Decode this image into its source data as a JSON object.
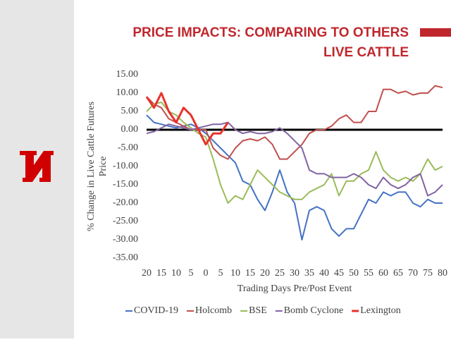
{
  "chart_data": {
    "type": "line",
    "title": [
      "PRICE IMPACTS: COMPARING TO OTHERS",
      "LIVE CATTLE"
    ],
    "ylabel": [
      "% Change in Live Cattle Futures",
      "Price"
    ],
    "xlabel": "Trading Days Pre/Post Event",
    "x": [
      -20,
      -17.5,
      -15,
      -12.5,
      -10,
      -7.5,
      -5,
      -2.5,
      0,
      2.5,
      5,
      7.5,
      10,
      12.5,
      15,
      17.5,
      20,
      22.5,
      25,
      27.5,
      30,
      32.5,
      35,
      37.5,
      40,
      42.5,
      45,
      47.5,
      50,
      52.5,
      55,
      57.5,
      60,
      62.5,
      65,
      67.5,
      70,
      72.5,
      75,
      77.5,
      80
    ],
    "xlim": [
      -20,
      80
    ],
    "xticks": [
      {
        "value": -20,
        "label": "20"
      },
      {
        "value": -15,
        "label": "15"
      },
      {
        "value": -10,
        "label": "10"
      },
      {
        "value": -5,
        "label": "5"
      },
      0,
      5,
      10,
      15,
      20,
      25,
      30,
      35,
      40,
      45,
      50,
      55,
      60,
      65,
      70,
      75,
      80
    ],
    "ylim": [
      -35,
      15
    ],
    "yticks": [
      {
        "value": -35,
        "label": "-35.00"
      },
      {
        "value": -30,
        "label": "-30.00"
      },
      {
        "value": -25,
        "label": "-25.00"
      },
      {
        "value": -20,
        "label": "-20.00"
      },
      {
        "value": -15,
        "label": "-15.00"
      },
      {
        "value": -10,
        "label": "-10.00"
      },
      {
        "value": -5,
        "label": "-5.00"
      },
      {
        "value": 0,
        "label": "0.00"
      },
      {
        "value": 5,
        "label": "5.00"
      },
      {
        "value": 10,
        "label": "10.00"
      },
      {
        "value": 15,
        "label": "15.00"
      }
    ],
    "series": [
      {
        "name": "COVID-19",
        "color": "#4472c4",
        "values": [
          4,
          2,
          1.5,
          1,
          0.5,
          1,
          1.5,
          0.5,
          -1,
          -3,
          -5,
          -7,
          -9,
          -14,
          -15,
          -19,
          -22,
          -17,
          -11,
          -17,
          -20,
          -30,
          -22,
          -21,
          -22,
          -27,
          -29,
          -27,
          -27,
          -23,
          -19,
          -20,
          -17,
          -18,
          -17,
          -17,
          -20,
          -21,
          -19,
          -20,
          -20
        ]
      },
      {
        "name": "Holcomb",
        "color": "#c0504d",
        "values": [
          9,
          7,
          6,
          3,
          2,
          1,
          0,
          0,
          0,
          -5,
          -7,
          -8,
          -5,
          -3,
          -2.5,
          -3,
          -2,
          -4,
          -8,
          -8,
          -6,
          -4,
          -1,
          0,
          0,
          1,
          3,
          4,
          2,
          2,
          5,
          5,
          11,
          11,
          10,
          10.5,
          9.5,
          10,
          10,
          12,
          11.5
        ]
      },
      {
        "name": "BSE",
        "color": "#9bbb59",
        "values": [
          5,
          7,
          7.5,
          5,
          4,
          2,
          0.5,
          -1,
          -2,
          -8,
          -15,
          -20,
          -18,
          -19,
          -15,
          -11,
          -13,
          -15,
          -17,
          -18,
          -19,
          -19,
          -17,
          -16,
          -15,
          -12,
          -18,
          -14,
          -14,
          -12,
          -11,
          -6,
          -11,
          -13,
          -14,
          -13,
          -14,
          -12,
          -8,
          -11,
          -10
        ]
      },
      {
        "name": "Bomb Cyclone",
        "color": "#8064a2",
        "values": [
          -1,
          -0.5,
          0.5,
          1.5,
          1,
          0.5,
          0,
          0.5,
          1,
          1.5,
          1.5,
          2,
          0,
          -1,
          -0.5,
          -1,
          -1,
          -0.5,
          0.5,
          -1,
          -3,
          -5,
          -11,
          -12,
          -12,
          -13,
          -13,
          -13,
          -12,
          -13,
          -15,
          -16,
          -13,
          -15,
          -16,
          -15,
          -13,
          -12,
          -18,
          -17,
          -15
        ]
      },
      {
        "name": "Lexington",
        "color": "#e8312a",
        "values": [
          9,
          6,
          10,
          5,
          2,
          6,
          4,
          0,
          -4,
          -1,
          -1,
          2,
          null,
          null,
          null,
          null,
          null,
          null,
          null,
          null,
          null,
          null,
          null,
          null,
          null,
          null,
          null,
          null,
          null,
          null,
          null,
          null,
          null,
          null,
          null,
          null,
          null,
          null,
          null,
          null,
          null
        ]
      }
    ]
  }
}
